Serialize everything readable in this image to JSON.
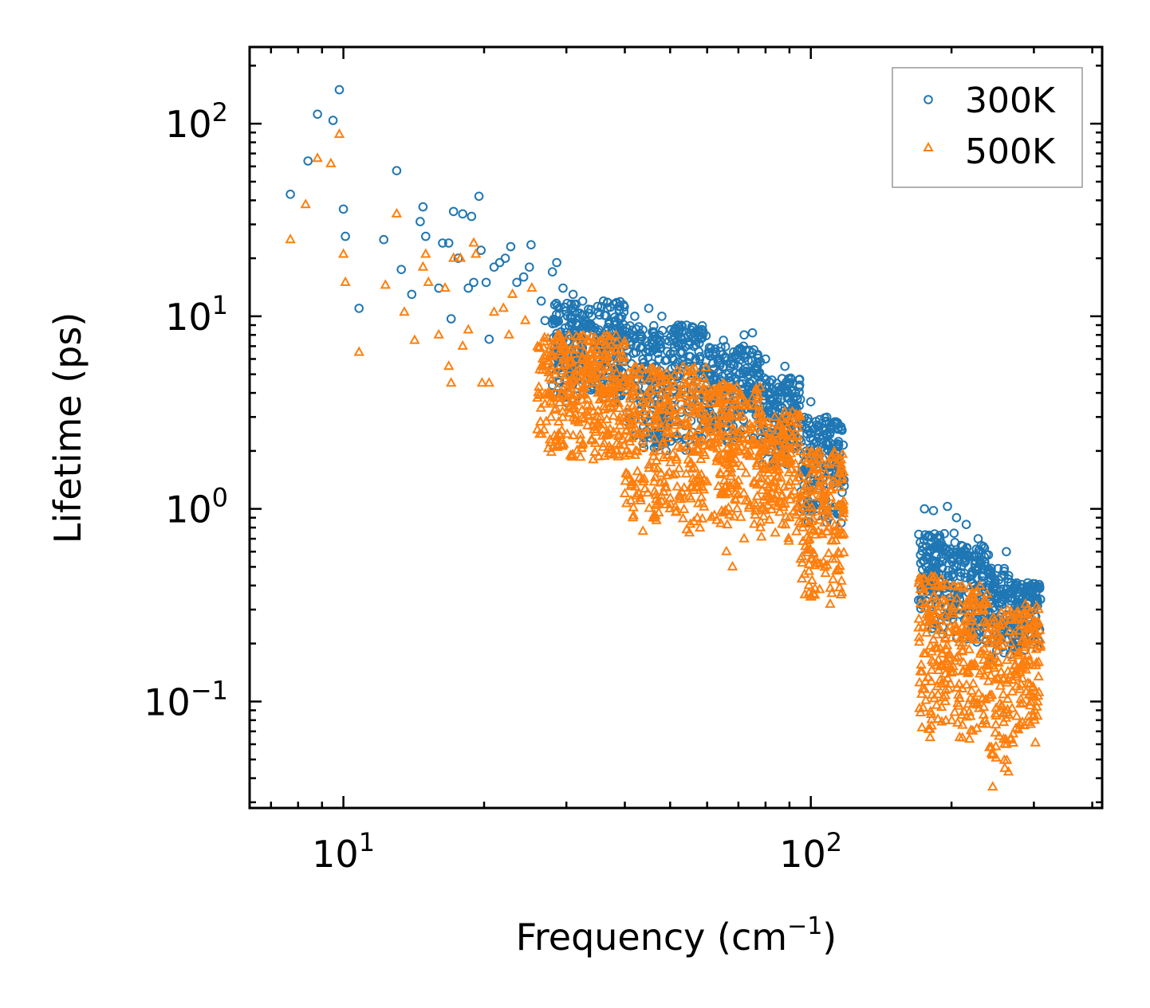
{
  "chart_data": {
    "type": "scatter",
    "title": "",
    "xlabel": "Frequency (cm",
    "xlabel_sup": "−1",
    "xlabel_end": ")",
    "ylabel": "Lifetime (ps)",
    "xscale": "log",
    "yscale": "log",
    "xlim": [
      6.3,
      420
    ],
    "ylim": [
      0.028,
      250
    ],
    "x_ticks": [
      {
        "base": "10",
        "exp": "1",
        "value": 10
      },
      {
        "base": "10",
        "exp": "2",
        "value": 100
      }
    ],
    "y_ticks": [
      {
        "base": "10",
        "exp": "2",
        "value": 100
      },
      {
        "base": "10",
        "exp": "1",
        "value": 10
      },
      {
        "base": "10",
        "exp": "0",
        "value": 1
      },
      {
        "base": "10",
        "exp": "−1",
        "value": 0.1
      }
    ],
    "legend": {
      "position": "top-right",
      "entries": [
        "300K",
        "500K"
      ]
    },
    "series": [
      {
        "name": "300K",
        "marker": "circle",
        "color": "#1f77b4",
        "points": [
          [
            7.7,
            43
          ],
          [
            8.4,
            64
          ],
          [
            8.8,
            112
          ],
          [
            9.5,
            104
          ],
          [
            9.8,
            150
          ],
          [
            10.0,
            36
          ],
          [
            10.1,
            26
          ],
          [
            10.8,
            11
          ],
          [
            12.2,
            25
          ],
          [
            13.0,
            57
          ],
          [
            13.3,
            17.5
          ],
          [
            14.0,
            13
          ],
          [
            14.6,
            31
          ],
          [
            14.8,
            37
          ],
          [
            15.0,
            26
          ],
          [
            16.0,
            14
          ],
          [
            16.3,
            24
          ],
          [
            16.8,
            24
          ],
          [
            17.0,
            9.7
          ],
          [
            17.2,
            35
          ],
          [
            17.6,
            20
          ],
          [
            18.0,
            34
          ],
          [
            18.5,
            14
          ],
          [
            18.8,
            33
          ],
          [
            19.0,
            15
          ],
          [
            19.5,
            42
          ],
          [
            19.7,
            22
          ],
          [
            20.2,
            15
          ],
          [
            20.5,
            7.6
          ],
          [
            21.0,
            18
          ],
          [
            21.6,
            19
          ],
          [
            22.2,
            20
          ],
          [
            22.8,
            23
          ],
          [
            23.5,
            15
          ],
          [
            24.3,
            16
          ],
          [
            25.0,
            18
          ],
          [
            25.2,
            23.5
          ],
          [
            26.5,
            12
          ],
          [
            27.0,
            9.5
          ],
          [
            28.0,
            17
          ],
          [
            28.6,
            19
          ],
          [
            29.5,
            14
          ],
          [
            31.0,
            13
          ],
          [
            32.5,
            12
          ],
          [
            34.0,
            10
          ],
          [
            36.0,
            12
          ],
          [
            38.0,
            9
          ],
          [
            42.0,
            10
          ],
          [
            45.0,
            11
          ],
          [
            48.0,
            10
          ],
          [
            52.0,
            9
          ],
          [
            58.0,
            8
          ],
          [
            65.0,
            7.5
          ],
          [
            72.0,
            8
          ],
          [
            75.0,
            8.2
          ],
          [
            80.0,
            6
          ],
          [
            88.0,
            5.5
          ],
          [
            95.0,
            3.7
          ],
          [
            100.0,
            3.6
          ],
          [
            110.0,
            2.2
          ],
          [
            175.0,
            1.0
          ],
          [
            183.0,
            0.98
          ],
          [
            196.0,
            1.03
          ],
          [
            205.0,
            0.9
          ],
          [
            215.0,
            0.83
          ],
          [
            228.0,
            0.7
          ],
          [
            262.0,
            0.6
          ],
          [
            290.0,
            0.3
          ],
          [
            305.0,
            0.25
          ]
        ],
        "bands": [
          {
            "x": [
              28,
              40
            ],
            "y": [
              3.5,
              12
            ]
          },
          {
            "x": [
              40,
              60
            ],
            "y": [
              2.0,
              9
            ]
          },
          {
            "x": [
              60,
              78
            ],
            "y": [
              2.2,
              7
            ]
          },
          {
            "x": [
              78,
              95
            ],
            "y": [
              1.6,
              4.8
            ]
          },
          {
            "x": [
              95,
              118
            ],
            "y": [
              0.8,
              3.0
            ]
          },
          {
            "x": [
              170,
              205
            ],
            "y": [
              0.22,
              0.75
            ]
          },
          {
            "x": [
              205,
              240
            ],
            "y": [
              0.2,
              0.65
            ]
          },
          {
            "x": [
              240,
              265
            ],
            "y": [
              0.17,
              0.5
            ]
          },
          {
            "x": [
              265,
              310
            ],
            "y": [
              0.17,
              0.42
            ]
          }
        ]
      },
      {
        "name": "500K",
        "marker": "triangle",
        "color": "#ff7f0e",
        "points": [
          [
            7.7,
            25
          ],
          [
            8.3,
            38
          ],
          [
            8.8,
            66
          ],
          [
            9.4,
            62
          ],
          [
            9.8,
            88
          ],
          [
            10.0,
            21
          ],
          [
            10.1,
            15
          ],
          [
            10.8,
            6.5
          ],
          [
            12.3,
            14.5
          ],
          [
            13.0,
            34
          ],
          [
            13.5,
            10.5
          ],
          [
            14.2,
            7.5
          ],
          [
            14.8,
            18
          ],
          [
            15.0,
            21
          ],
          [
            15.2,
            15
          ],
          [
            16.0,
            8
          ],
          [
            16.5,
            14
          ],
          [
            16.8,
            5.5
          ],
          [
            17.0,
            4.5
          ],
          [
            17.2,
            20
          ],
          [
            17.8,
            20
          ],
          [
            18.0,
            7
          ],
          [
            18.5,
            8.5
          ],
          [
            19.0,
            24
          ],
          [
            19.2,
            21
          ],
          [
            19.8,
            4.5
          ],
          [
            20.5,
            4.5
          ],
          [
            21.0,
            10.5
          ],
          [
            22.0,
            11
          ],
          [
            22.6,
            8
          ],
          [
            23.0,
            13
          ],
          [
            24.5,
            9.5
          ],
          [
            25.3,
            14
          ],
          [
            26.5,
            5.5
          ],
          [
            27.0,
            3.5
          ],
          [
            29.0,
            8
          ],
          [
            31.0,
            2.4
          ],
          [
            35.0,
            3.0
          ],
          [
            40.0,
            1.2
          ],
          [
            46.0,
            0.9
          ],
          [
            55.0,
            0.75
          ],
          [
            66.0,
            0.6
          ],
          [
            68.0,
            0.5
          ],
          [
            72.0,
            0.7
          ],
          [
            78.0,
            0.8
          ],
          [
            90.0,
            0.9
          ],
          [
            100.0,
            0.55
          ],
          [
            110.0,
            0.32
          ],
          [
            180.0,
            0.065
          ],
          [
            194.0,
            0.1
          ],
          [
            245.0,
            0.036
          ],
          [
            260.0,
            0.045
          ],
          [
            300.0,
            0.085
          ]
        ],
        "bands": [
          {
            "x": [
              26,
              40
            ],
            "y": [
              1.8,
              8
            ]
          },
          {
            "x": [
              40,
              60
            ],
            "y": [
              0.75,
              5.5
            ]
          },
          {
            "x": [
              60,
              78
            ],
            "y": [
              0.8,
              4.5
            ]
          },
          {
            "x": [
              78,
              95
            ],
            "y": [
              0.65,
              3.2
            ]
          },
          {
            "x": [
              95,
              118
            ],
            "y": [
              0.33,
              2.0
            ]
          },
          {
            "x": [
              170,
              205
            ],
            "y": [
              0.07,
              0.45
            ]
          },
          {
            "x": [
              205,
              240
            ],
            "y": [
              0.06,
              0.4
            ]
          },
          {
            "x": [
              240,
              265
            ],
            "y": [
              0.04,
              0.3
            ]
          },
          {
            "x": [
              265,
              310
            ],
            "y": [
              0.06,
              0.32
            ]
          }
        ]
      }
    ]
  }
}
